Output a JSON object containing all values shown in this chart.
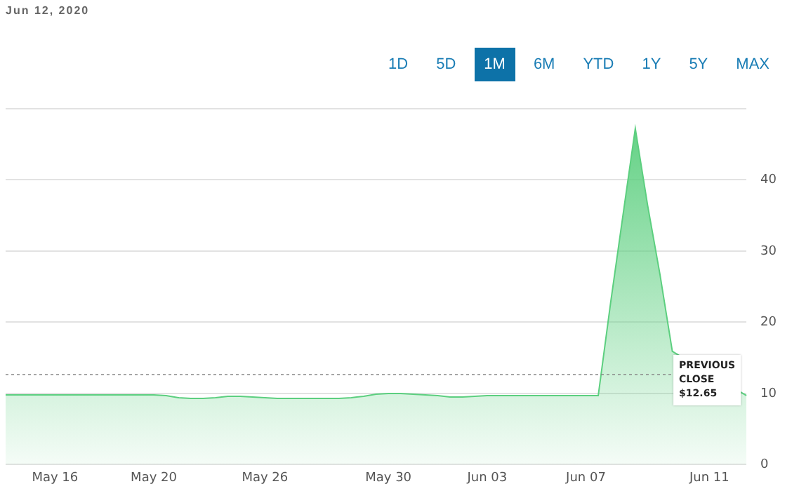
{
  "chart_data": {
    "type": "area",
    "annotations": [
      "Jun 12, 2020",
      "1D",
      "5D",
      "1M",
      "6M",
      "YTD",
      "1Y",
      "5Y",
      "MAX"
    ],
    "categories": [
      null,
      null,
      null,
      null,
      "May 16",
      null,
      null,
      null,
      null,
      null,
      null,
      null,
      "May 20",
      null,
      null,
      null,
      null,
      null,
      null,
      null,
      null,
      "May 26",
      null,
      null,
      null,
      null,
      null,
      null,
      null,
      null,
      null,
      "May 30",
      null,
      null,
      null,
      null,
      null,
      null,
      null,
      "Jun 03",
      null,
      null,
      null,
      null,
      null,
      null,
      null,
      "Jun 07",
      null,
      null,
      null,
      null,
      null,
      null,
      null,
      null,
      null,
      "Jun 11",
      null,
      null,
      null
    ],
    "series": [
      {
        "color": "#5ccf7f",
        "values": [
          9.8,
          9.8,
          9.8,
          9.8,
          9.8,
          9.8,
          9.8,
          9.8,
          9.8,
          9.8,
          9.8,
          9.8,
          9.8,
          9.7,
          9.4,
          9.3,
          9.3,
          9.4,
          9.6,
          9.6,
          9.5,
          9.4,
          9.3,
          9.3,
          9.3,
          9.3,
          9.3,
          9.3,
          9.4,
          9.6,
          9.9,
          10,
          10,
          9.9,
          9.8,
          9.7,
          9.5,
          9.5,
          9.6,
          9.7,
          9.7,
          9.7,
          9.7,
          9.7,
          9.7,
          9.7,
          9.7,
          9.7,
          9.7,
          22.7,
          35,
          47.2,
          36.4,
          26.7,
          15.9,
          null,
          null,
          null,
          null,
          null,
          9.7
        ]
      }
    ],
    "ylim": [
      0,
      50
    ],
    "yticks": [
      0,
      10,
      20,
      30,
      40,
      {
        "value": 50,
        "label": null
      }
    ],
    "grid": "y",
    "legend": false,
    "ref_lines": [
      {
        "axis": "y",
        "value": 12.65,
        "label": "PREVIOUS CLOSE $12.65",
        "color": "#888888",
        "line_style": "dashed"
      }
    ]
  }
}
